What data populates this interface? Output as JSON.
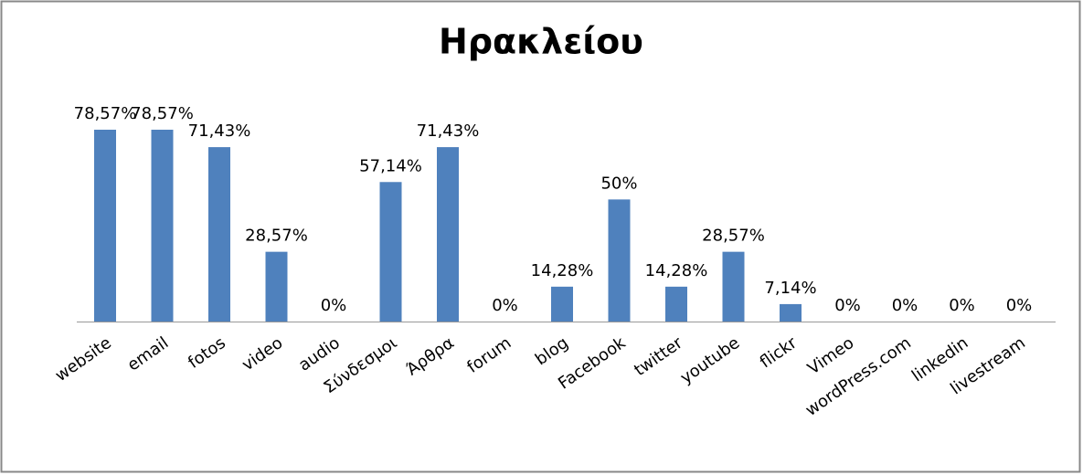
{
  "chart_data": {
    "type": "bar",
    "title": "Ηρακλείου",
    "categories": [
      "website",
      "email",
      "fotos",
      "video",
      "audio",
      "Σύνδεσμοι",
      "Άρθρα",
      "forum",
      "blog",
      "Facebook",
      "twitter",
      "youtube",
      "flickr",
      "Vimeo",
      "wordPress.com",
      "linkedin",
      "livestream"
    ],
    "values": [
      78.57,
      78.57,
      71.43,
      28.57,
      0,
      57.14,
      71.43,
      0,
      14.28,
      50,
      14.28,
      28.57,
      7.14,
      0,
      0,
      0,
      0
    ],
    "value_labels": [
      "78,57%",
      "78,57%",
      "71,43%",
      "28,57%",
      "0%",
      "57,14%",
      "71,43%",
      "0%",
      "14,28%",
      "50%",
      "14,28%",
      "28,57%",
      "7,14%",
      "0%",
      "0%",
      "0%",
      "0%"
    ],
    "color": "#4f81bd"
  }
}
